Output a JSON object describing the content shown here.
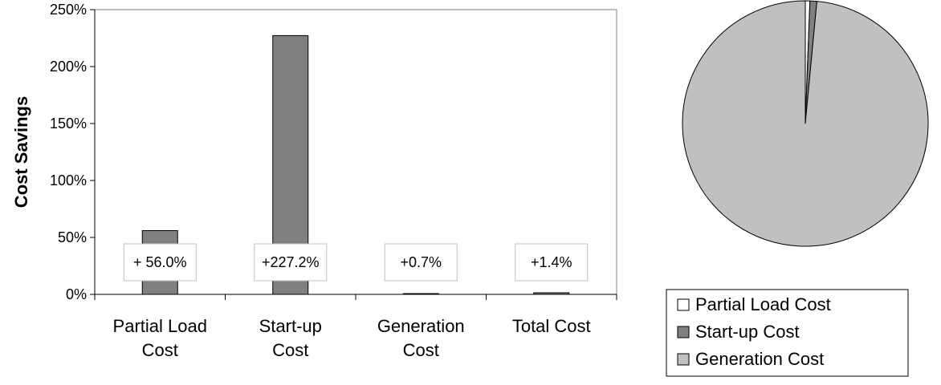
{
  "chart_data": [
    {
      "type": "bar",
      "categories": [
        "Partial Load Cost",
        "Start-up Cost",
        "Generation Cost",
        "Total Cost"
      ],
      "values": [
        56.0,
        227.2,
        0.7,
        1.4
      ],
      "annotations": [
        "+ 56.0%",
        "+227.2%",
        "+0.7%",
        "+1.4%"
      ],
      "ylabel": "Cost Savings",
      "ylim": [
        0,
        250
      ],
      "yticks": [
        "0%",
        "50%",
        "100%",
        "150%",
        "200%",
        "250%"
      ],
      "grid": false,
      "colors": {
        "bar": "#808080",
        "outline": "#000000",
        "annotation_border": "#c0c0c0"
      }
    },
    {
      "type": "pie",
      "labels": [
        "Partial Load Cost",
        "Start-up Cost",
        "Generation Cost"
      ],
      "values": [
        0.6,
        0.9,
        98.5
      ],
      "colors": [
        "#ffffff",
        "#808080",
        "#c0c0c0"
      ],
      "legend": "bottom"
    }
  ]
}
